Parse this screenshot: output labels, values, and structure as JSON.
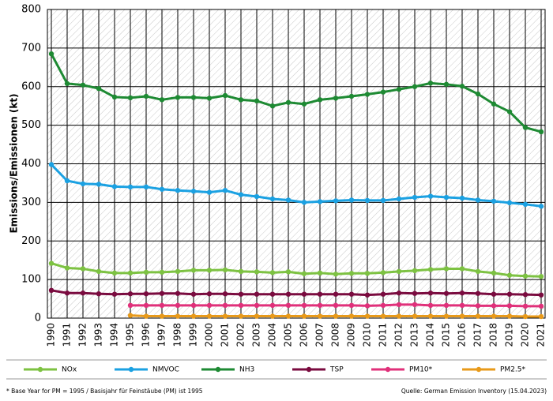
{
  "chart_data": {
    "type": "line",
    "y_label": "Emissions/Emissionen (kt)",
    "categories": [
      "1990",
      "1991",
      "1992",
      "1993",
      "1994",
      "1995",
      "1996",
      "1997",
      "1998",
      "1999",
      "2000",
      "2001",
      "2002",
      "2003",
      "2004",
      "2005",
      "2006",
      "2007",
      "2008",
      "2009",
      "2010",
      "2011",
      "2012",
      "2013",
      "2014",
      "2015",
      "2016",
      "2017",
      "2018",
      "2019",
      "2020",
      "2021"
    ],
    "series": [
      {
        "name": "NOx",
        "color": "#7dc242",
        "values": [
          142,
          130,
          128,
          121,
          117,
          117,
          119,
          119,
          121,
          124,
          124,
          125,
          121,
          120,
          118,
          120,
          115,
          117,
          114,
          116,
          116,
          118,
          121,
          123,
          126,
          128,
          128,
          121,
          117,
          111,
          109,
          108
        ]
      },
      {
        "name": "NMVOC",
        "color": "#1ba1e2",
        "values": [
          398,
          356,
          348,
          347,
          341,
          340,
          340,
          334,
          331,
          329,
          326,
          331,
          320,
          315,
          309,
          306,
          300,
          302,
          304,
          306,
          305,
          305,
          309,
          313,
          316,
          313,
          311,
          306,
          303,
          299,
          295,
          290
        ]
      },
      {
        "name": "NH3",
        "color": "#1e8a33",
        "values": [
          685,
          608,
          604,
          595,
          573,
          571,
          575,
          566,
          572,
          572,
          570,
          577,
          566,
          563,
          550,
          559,
          555,
          566,
          570,
          575,
          580,
          586,
          593,
          600,
          609,
          606,
          601,
          581,
          555,
          535,
          494,
          483
        ]
      },
      {
        "name": "TSP",
        "color": "#7a0b3f",
        "values": [
          72,
          65,
          65,
          63,
          62,
          63,
          63,
          64,
          64,
          62,
          63,
          63,
          62,
          62,
          62,
          62,
          62,
          62,
          62,
          62,
          60,
          62,
          65,
          64,
          65,
          64,
          65,
          64,
          62,
          62,
          61,
          60
        ]
      },
      {
        "name": "PM10*",
        "color": "#e0307a",
        "values": [
          null,
          null,
          null,
          null,
          null,
          33,
          33,
          33,
          33,
          33,
          33,
          33,
          33,
          33,
          33,
          33,
          33,
          33,
          33,
          33,
          32,
          33,
          35,
          35,
          33,
          33,
          33,
          32,
          32,
          32,
          31,
          31
        ]
      },
      {
        "name": "PM2.5*",
        "color": "#e89a1a",
        "values": [
          null,
          null,
          null,
          null,
          null,
          7,
          5,
          5,
          5,
          5,
          5,
          5,
          5,
          5,
          5,
          5,
          5,
          5,
          5,
          5,
          5,
          5,
          5,
          5,
          5,
          5,
          5,
          5,
          5,
          5,
          4,
          4
        ]
      }
    ],
    "ylim": [
      0,
      800
    ],
    "yticks": [
      0,
      100,
      200,
      300,
      400,
      500,
      600,
      700,
      800
    ],
    "grid": true,
    "note": "* Base Year for PM = 1995 / Basisjahr für Feinstäube (PM) ist 1995",
    "source": "Quelle:  German Emission Inventory (15.04.2023)"
  }
}
